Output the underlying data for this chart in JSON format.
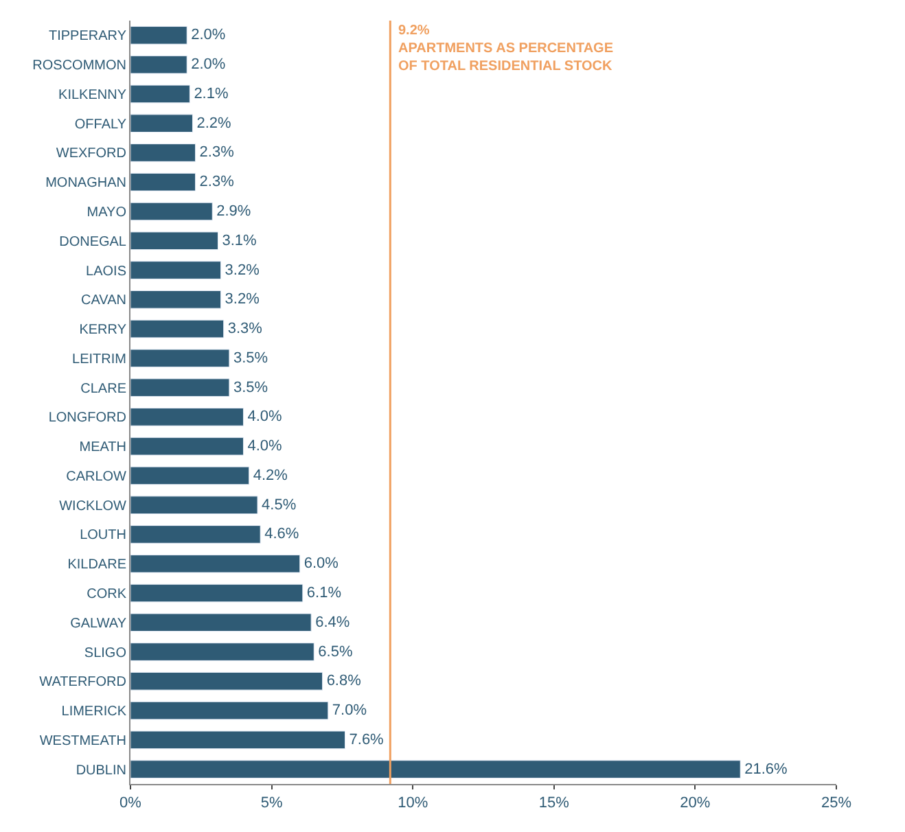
{
  "chart_data": {
    "type": "bar",
    "orientation": "horizontal",
    "categories": [
      "TIPPERARY",
      "ROSCOMMON",
      "KILKENNY",
      "OFFALY",
      "WEXFORD",
      "MONAGHAN",
      "MAYO",
      "DONEGAL",
      "LAOIS",
      "CAVAN",
      "KERRY",
      "LEITRIM",
      "CLARE",
      "LONGFORD",
      "MEATH",
      "CARLOW",
      "WICKLOW",
      "LOUTH",
      "KILDARE",
      "CORK",
      "GALWAY",
      "SLIGO",
      "WATERFORD",
      "LIMERICK",
      "WESTMEATH",
      "DUBLIN"
    ],
    "values": [
      2.0,
      2.0,
      2.1,
      2.2,
      2.3,
      2.3,
      2.9,
      3.1,
      3.2,
      3.2,
      3.3,
      3.5,
      3.5,
      4.0,
      4.0,
      4.2,
      4.5,
      4.6,
      6.0,
      6.1,
      6.4,
      6.5,
      6.8,
      7.0,
      7.6,
      21.6
    ],
    "value_labels": [
      "2.0%",
      "2.0%",
      "2.1%",
      "2.2%",
      "2.3%",
      "2.3%",
      "2.9%",
      "3.1%",
      "3.2%",
      "3.2%",
      "3.3%",
      "3.5%",
      "3.5%",
      "4.0%",
      "4.0%",
      "4.2%",
      "4.5%",
      "4.6%",
      "6.0%",
      "6.1%",
      "6.4%",
      "6.5%",
      "6.8%",
      "7.0%",
      "7.6%",
      "21.6%"
    ],
    "color": "#2f5b75",
    "xlim": [
      0,
      25
    ],
    "xticks": [
      {
        "value": 0,
        "label": "0%"
      },
      {
        "value": 5,
        "label": "5%"
      },
      {
        "value": 10,
        "label": "10%"
      },
      {
        "value": 15,
        "label": "15%"
      },
      {
        "value": 20,
        "label": "20%"
      },
      {
        "value": 25,
        "label": "25%"
      }
    ],
    "ref_lines": [
      {
        "axis": "x",
        "value": 9.2,
        "label": "9.2%\nAPARTMENTS AS PERCENTAGE\nOF TOTAL RESIDENTIAL STOCK",
        "color": "#f0a060"
      }
    ],
    "legend": false
  }
}
